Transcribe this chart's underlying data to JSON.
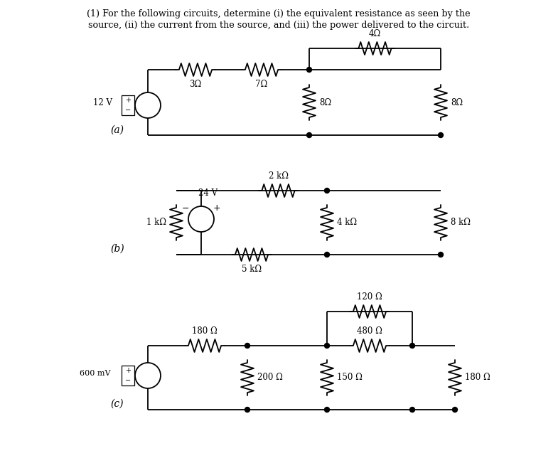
{
  "title_line1": "(1) For the following circuits, determine (i) the equivalent resistance as seen by the",
  "title_line2": "source, (ii) the current from the source, and (iii) the power delivered to the circuit.",
  "bg_color": "#ffffff",
  "text_color": "#000000",
  "line_color": "#000000",
  "circuit_a": {
    "label": "(a)",
    "source_label": "12 V",
    "resistors": [
      "3Ω",
      "7Ω",
      "8Ω",
      "4Ω",
      "8Ω"
    ]
  },
  "circuit_b": {
    "label": "(b)",
    "source_label": "24 V",
    "resistors": [
      "1 kΩ",
      "2 kΩ",
      "5 kΩ",
      "4 kΩ",
      "8 kΩ"
    ]
  },
  "circuit_c": {
    "label": "(c)",
    "source_label": "600 mV",
    "resistors": [
      "180 Ω",
      "200 Ω",
      "150 Ω",
      "120 Ω",
      "480 Ω",
      "180 Ω"
    ]
  }
}
